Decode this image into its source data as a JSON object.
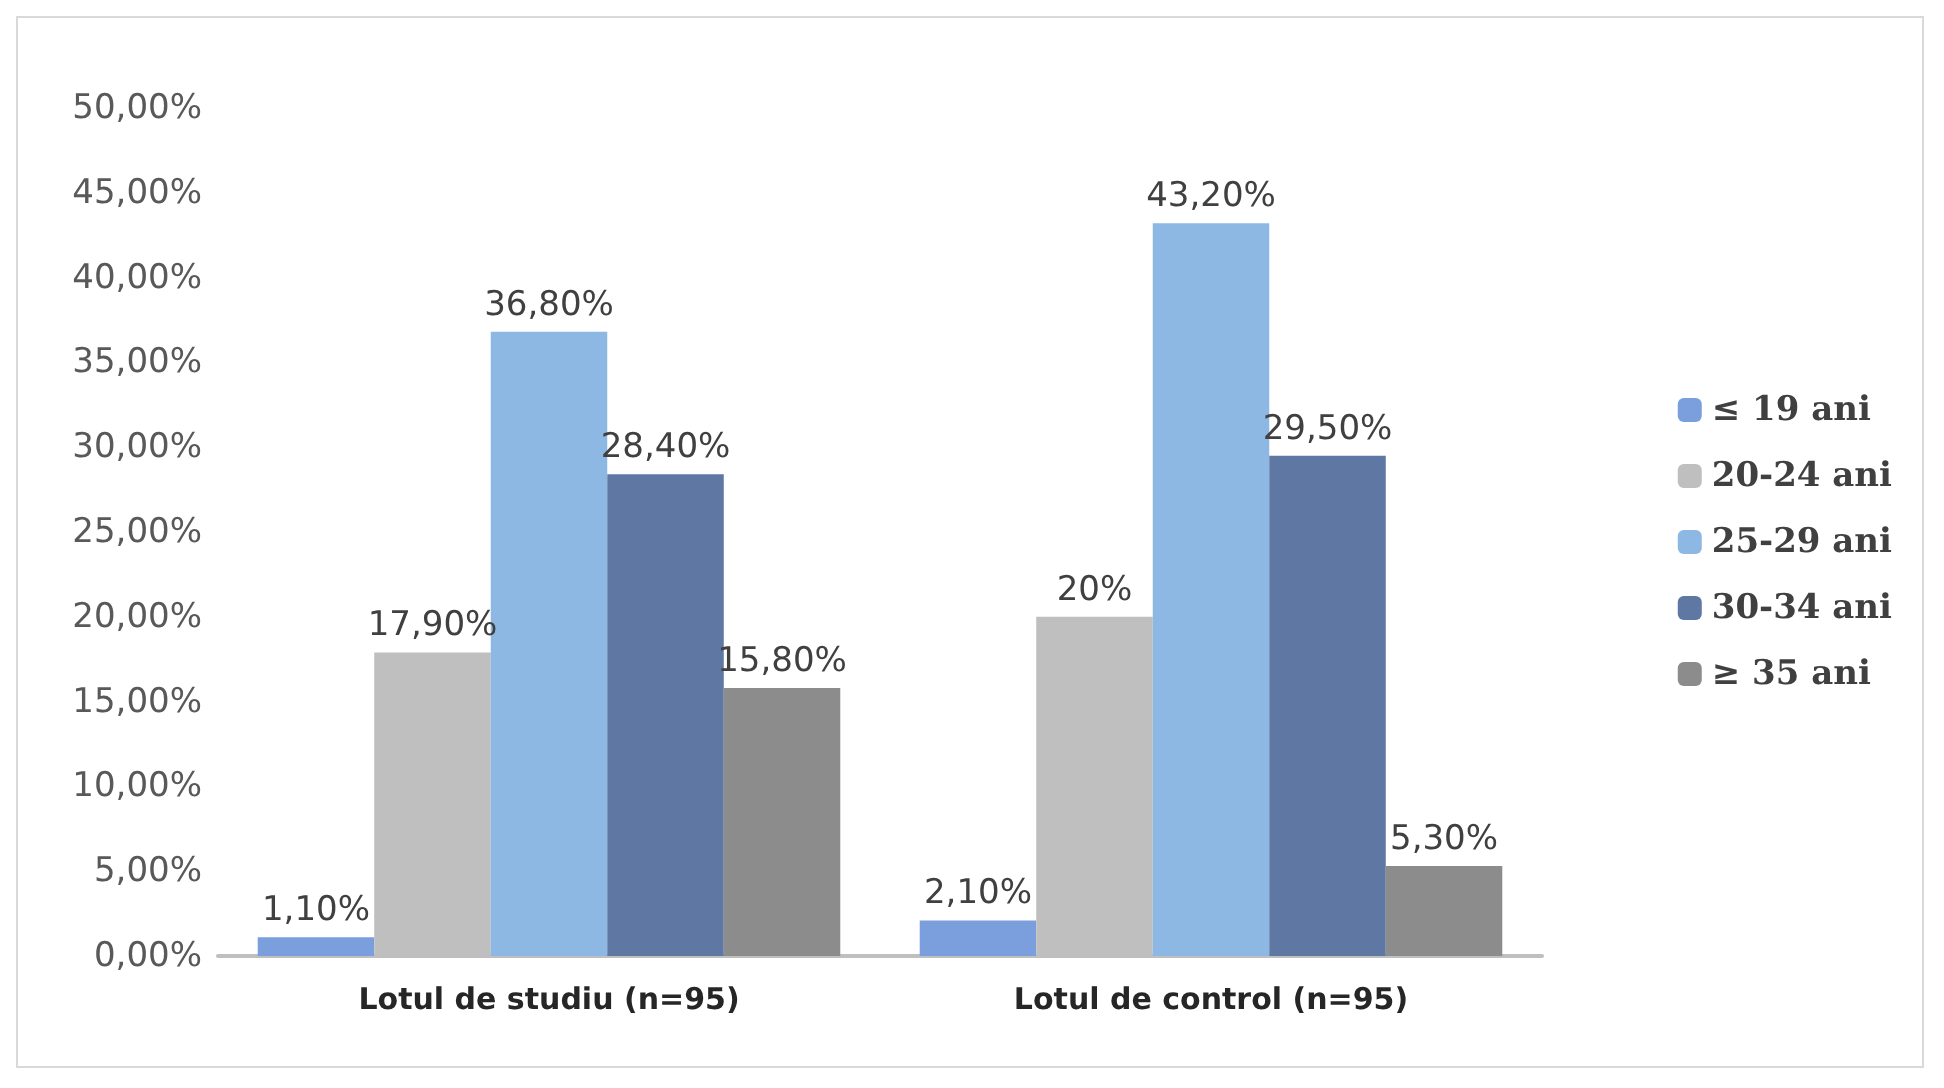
{
  "chart_data": {
    "type": "bar",
    "categories": [
      "Lotul de studiu (n=95)",
      "Lotul de control (n=95)"
    ],
    "series": [
      {
        "name": "≤ 19 ani",
        "color": "#7b9fdc",
        "values": [
          1.1,
          2.1
        ],
        "value_labels": [
          "1,10%",
          "2,10%"
        ]
      },
      {
        "name": "20-24 ani",
        "color": "#bfbfbf",
        "values": [
          17.9,
          20
        ],
        "value_labels": [
          "17,90%",
          "20%"
        ]
      },
      {
        "name": "25-29 ani",
        "color": "#8db8e3",
        "values": [
          36.8,
          43.2
        ],
        "value_labels": [
          "36,80%",
          "43,20%"
        ]
      },
      {
        "name": "30-34 ani",
        "color": "#5f77a3",
        "values": [
          28.4,
          29.5
        ],
        "value_labels": [
          "28,40%",
          "29,50%"
        ]
      },
      {
        "name": "≥ 35 ani",
        "color": "#8c8c8c",
        "values": [
          15.8,
          5.3
        ],
        "value_labels": [
          "15,80%",
          "5,30%"
        ]
      }
    ],
    "ylim": [
      0,
      50
    ],
    "yticks": [
      {
        "value": 0,
        "label": "0,00%"
      },
      {
        "value": 5,
        "label": "5,00%"
      },
      {
        "value": 10,
        "label": "10,00%"
      },
      {
        "value": 15,
        "label": "15,00%"
      },
      {
        "value": 20,
        "label": "20,00%"
      },
      {
        "value": 25,
        "label": "25,00%"
      },
      {
        "value": 30,
        "label": "30,00%"
      },
      {
        "value": 35,
        "label": "35,00%"
      },
      {
        "value": 40,
        "label": "40,00%"
      },
      {
        "value": 45,
        "label": "45,00%"
      },
      {
        "value": 50,
        "label": "50,00%"
      }
    ],
    "grid": false,
    "legend": "right"
  }
}
